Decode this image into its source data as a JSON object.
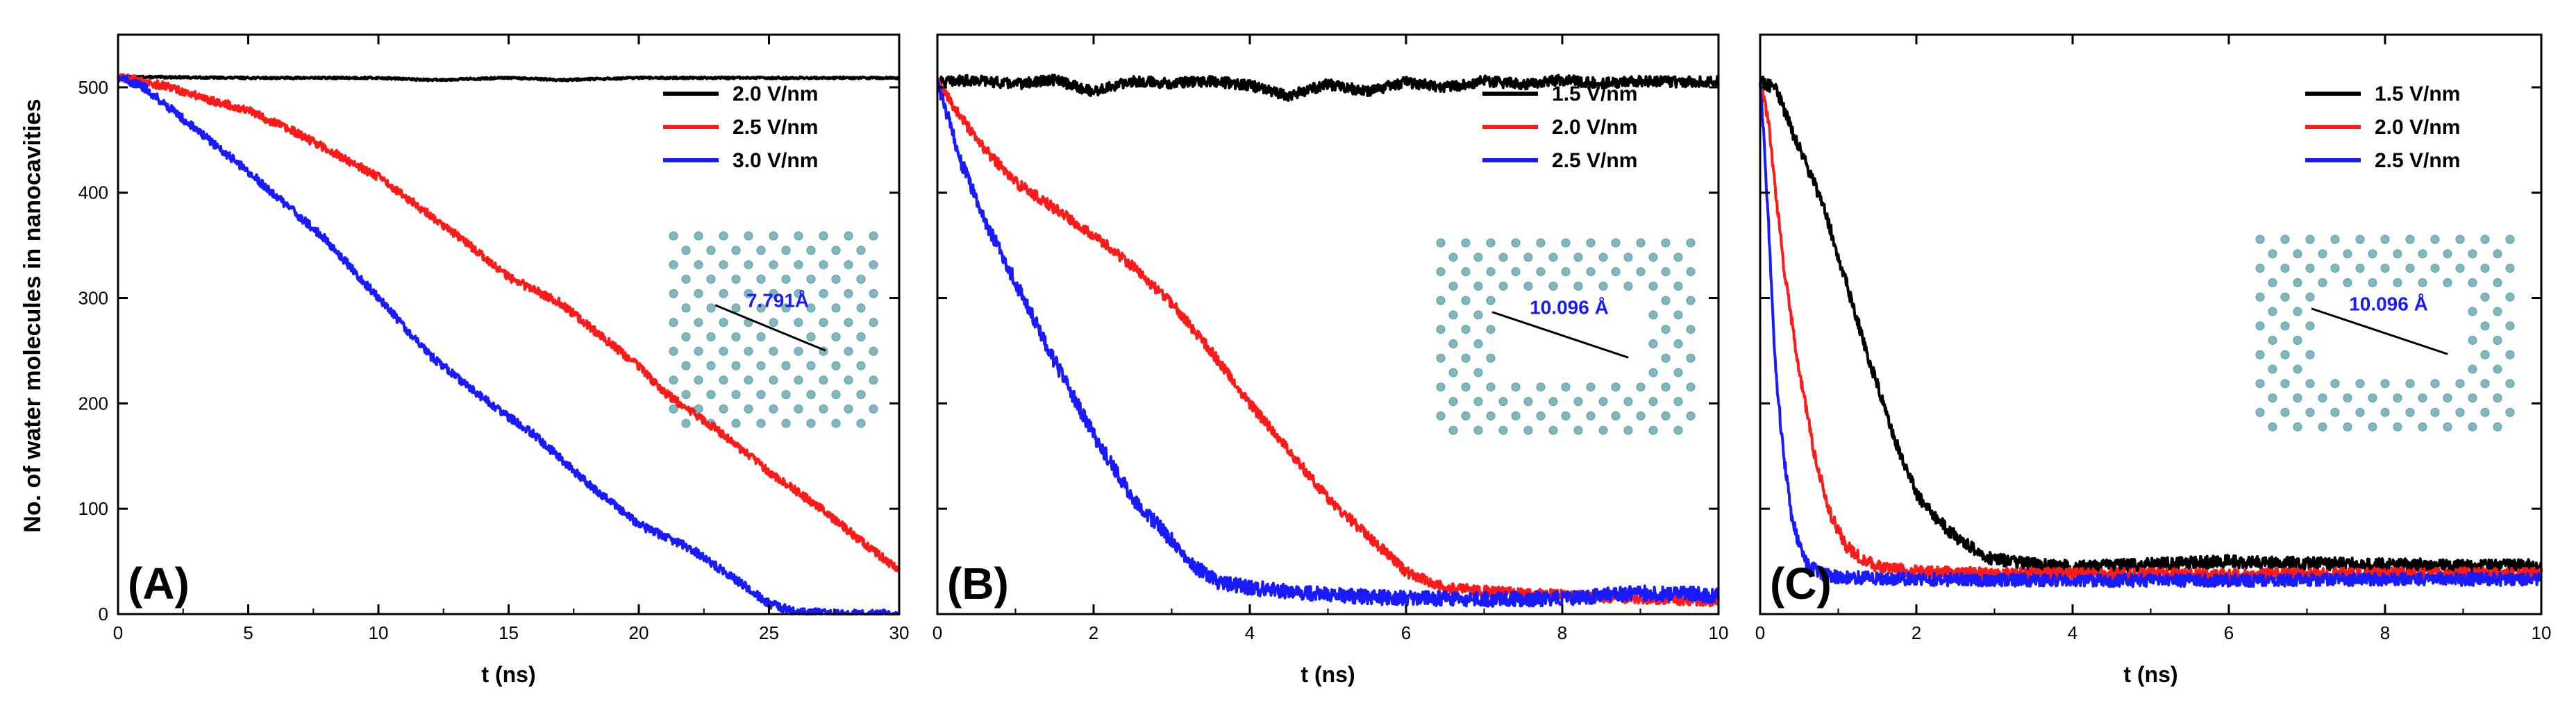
{
  "figure": {
    "ylabel": "No. of water molecules in nanocavities"
  },
  "colors": {
    "black": "#000000",
    "red": "#ff1a1a",
    "blue": "#1a1aff",
    "axis": "#000000",
    "atom": "#7fb8bf",
    "bond": "#5f9aa2",
    "length_label": "#1a1aff"
  },
  "chart_data": [
    {
      "type": "line",
      "panel_label": "(A)",
      "xlabel": "t (ns)",
      "ylabel": "No. of water molecules in nanocavities",
      "xlim": [
        0,
        30
      ],
      "ylim": [
        0,
        550
      ],
      "xticks": [
        0,
        5,
        10,
        15,
        20,
        25,
        30
      ],
      "yticks": [
        0,
        100,
        200,
        300,
        400,
        500
      ],
      "legend_position": "top-right",
      "inset": {
        "label": "7.791Å",
        "pore": "small"
      },
      "series": [
        {
          "name": "2.0 V/nm",
          "color": "black",
          "x": [
            0,
            5,
            10,
            12,
            15,
            17,
            20,
            25,
            30
          ],
          "y": [
            510,
            509,
            509,
            507,
            509,
            507,
            509,
            509,
            509
          ],
          "noise": 1
        },
        {
          "name": "2.5 V/nm",
          "color": "red",
          "x": [
            0,
            1,
            2,
            3,
            5,
            7,
            10,
            13,
            15,
            17,
            20,
            21,
            23,
            25,
            27,
            29,
            30
          ],
          "y": [
            510,
            505,
            500,
            492,
            478,
            455,
            415,
            360,
            320,
            295,
            235,
            210,
            175,
            135,
            100,
            60,
            42
          ],
          "noise": 4
        },
        {
          "name": "3.0 V/nm",
          "color": "blue",
          "x": [
            0,
            1,
            3,
            5,
            8,
            10,
            12,
            14,
            16,
            18,
            20,
            22,
            24,
            25,
            26,
            28,
            30
          ],
          "y": [
            510,
            500,
            460,
            420,
            355,
            300,
            245,
            205,
            170,
            125,
            85,
            62,
            28,
            10,
            2,
            0,
            0
          ],
          "noise": 4
        }
      ]
    },
    {
      "type": "line",
      "panel_label": "(B)",
      "xlabel": "t (ns)",
      "ylabel": "",
      "xlim": [
        0,
        10
      ],
      "ylim": [
        0,
        550
      ],
      "xticks": [
        0,
        2,
        4,
        6,
        8,
        10
      ],
      "yticks": [],
      "legend_position": "top-right",
      "inset": {
        "label": "10.096 Å",
        "pore": "large"
      },
      "series": [
        {
          "name": "1.5 V/nm",
          "color": "black",
          "x": [
            0,
            0.5,
            1,
            1.5,
            2,
            2.5,
            3,
            3.5,
            4,
            4.5,
            5,
            5.5,
            6,
            6.5,
            7,
            7.5,
            8,
            8.5,
            9,
            9.5,
            10
          ],
          "y": [
            505,
            507,
            503,
            507,
            496,
            506,
            504,
            506,
            502,
            492,
            503,
            496,
            505,
            500,
            506,
            503,
            507,
            504,
            506,
            505,
            506
          ],
          "noise": 5
        },
        {
          "name": "2.0 V/nm",
          "color": "red",
          "x": [
            0,
            0.5,
            1,
            1.5,
            2,
            2.5,
            3,
            3.5,
            4,
            4.5,
            5,
            5.5,
            6,
            6.5,
            7,
            7.5,
            8,
            9,
            10
          ],
          "y": [
            505,
            450,
            410,
            385,
            360,
            330,
            295,
            250,
            200,
            155,
            110,
            75,
            40,
            25,
            22,
            20,
            18,
            15,
            12
          ],
          "noise": 5
        },
        {
          "name": "2.5 V/nm",
          "color": "blue",
          "x": [
            0,
            0.3,
            0.6,
            1,
            1.5,
            2,
            2.5,
            3,
            3.3,
            3.6,
            4,
            5,
            6,
            7,
            8,
            9,
            10
          ],
          "y": [
            505,
            430,
            375,
            315,
            240,
            170,
            110,
            70,
            45,
            30,
            25,
            18,
            15,
            14,
            15,
            20,
            18
          ],
          "noise": 7
        }
      ]
    },
    {
      "type": "line",
      "panel_label": "(C)",
      "xlabel": "t (ns)",
      "ylabel": "",
      "xlim": [
        0,
        10
      ],
      "ylim": [
        0,
        550
      ],
      "xticks": [
        0,
        2,
        4,
        6,
        8,
        10
      ],
      "yticks": [],
      "legend_position": "top-right",
      "inset": {
        "label": "10.096 Å",
        "pore": "large"
      },
      "series": [
        {
          "name": "1.5 V/nm",
          "color": "black",
          "x": [
            0,
            0.2,
            0.4,
            0.6,
            0.8,
            1,
            1.2,
            1.4,
            1.6,
            1.8,
            2,
            2.2,
            2.4,
            2.6,
            2.8,
            3,
            3.5,
            4,
            5,
            6,
            7,
            8,
            9,
            10
          ],
          "y": [
            505,
            500,
            460,
            425,
            390,
            340,
            290,
            240,
            195,
            150,
            115,
            95,
            80,
            68,
            58,
            52,
            47,
            45,
            47,
            50,
            48,
            47,
            46,
            46
          ],
          "noise": 6
        },
        {
          "name": "2.0 V/nm",
          "color": "red",
          "x": [
            0,
            0.1,
            0.2,
            0.3,
            0.5,
            0.7,
            0.9,
            1.1,
            1.3,
            1.5,
            2,
            3,
            4,
            6,
            8,
            10
          ],
          "y": [
            505,
            470,
            400,
            330,
            230,
            150,
            95,
            65,
            52,
            45,
            40,
            38,
            38,
            37,
            38,
            38
          ],
          "noise": 6
        },
        {
          "name": "2.5 V/nm",
          "color": "blue",
          "x": [
            0,
            0.05,
            0.1,
            0.15,
            0.2,
            0.3,
            0.4,
            0.5,
            0.6,
            0.8,
            1,
            2,
            4,
            6,
            8,
            10
          ],
          "y": [
            505,
            450,
            380,
            300,
            230,
            150,
            95,
            65,
            48,
            38,
            35,
            33,
            32,
            32,
            33,
            33
          ],
          "noise": 6
        }
      ]
    }
  ]
}
